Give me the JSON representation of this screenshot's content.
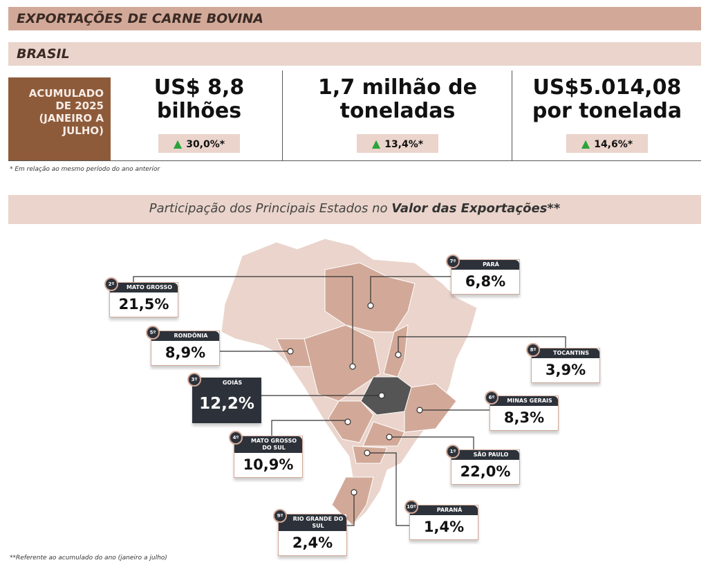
{
  "header": {
    "title": "EXPORTAÇÕES DE CARNE BOVINA",
    "subtitle": "BRASIL"
  },
  "period": "ACUMULADO DE 2025 (JANEIRO A JULHO)",
  "stats": [
    {
      "line1": "US$ 8,8",
      "line2": "bilhões",
      "change": "30,0%*"
    },
    {
      "line1": "1,7 milhão de",
      "line2": "toneladas",
      "change": "13,4%*"
    },
    {
      "line1": "US$5.014,08",
      "line2": "por tonelada",
      "change": "14,6%*"
    }
  ],
  "note1": "* Em relação ao mesmo período do ano anterior",
  "section": {
    "prefix": "Participação dos Principais Estados no ",
    "bold": "Valor das Exportações**"
  },
  "states": [
    {
      "rank": "2º",
      "name": "MATO GROSSO",
      "value": "21,5%"
    },
    {
      "rank": "7º",
      "name": "PARÁ",
      "value": "6,8%"
    },
    {
      "rank": "5º",
      "name": "RONDÔNIA",
      "value": "8,9%"
    },
    {
      "rank": "8º",
      "name": "TOCANTINS",
      "value": "3,9%"
    },
    {
      "rank": "3º",
      "name": "GOIÁS",
      "value": "12,2%"
    },
    {
      "rank": "6º",
      "name": "MINAS GERAIS",
      "value": "8,3%"
    },
    {
      "rank": "4º",
      "name": "MATO GROSSO DO SUL",
      "value": "10,9%"
    },
    {
      "rank": "1º",
      "name": "SÃO PAULO",
      "value": "22,0%"
    },
    {
      "rank": "10º",
      "name": "PARANÁ",
      "value": "1,4%"
    },
    {
      "rank": "9º",
      "name": "RIO GRANDE DO SUL",
      "value": "2,4%"
    }
  ],
  "note2": "**Referente ao acumulado do ano (janeiro a julho)",
  "colors": {
    "accent": "#d2a998",
    "light": "#ead4cb",
    "brown": "#8e5b3a",
    "dark": "#2d323a",
    "up": "#2aa43a"
  }
}
